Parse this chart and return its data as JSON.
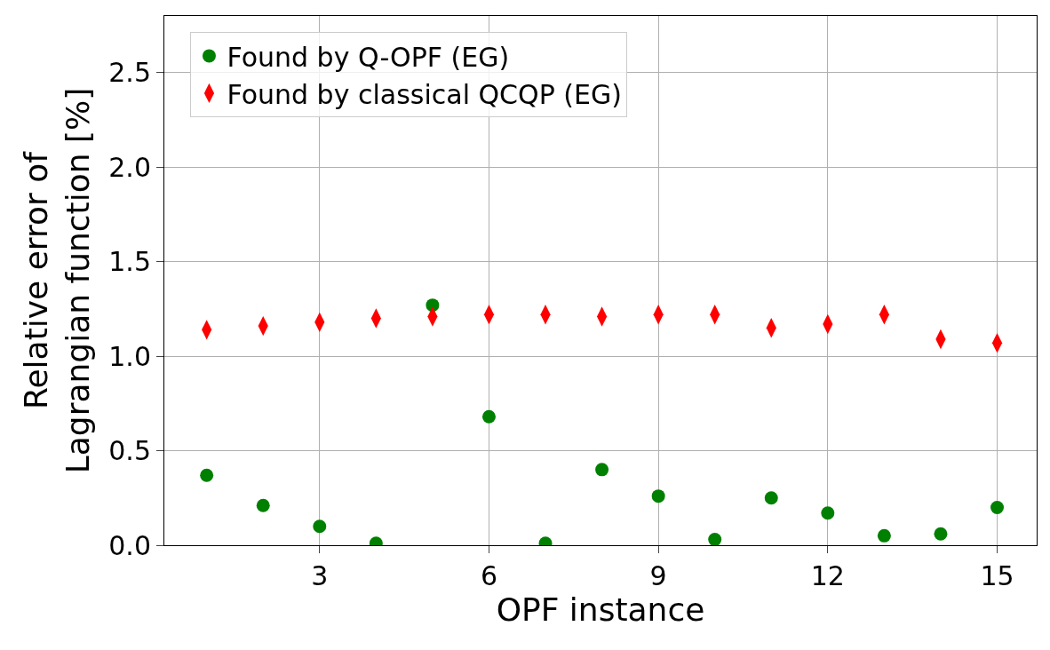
{
  "chart_data": {
    "type": "scatter",
    "xlabel": "OPF instance",
    "ylabel": "Relative error of\nLagrangian function [%]",
    "x": [
      1,
      2,
      3,
      4,
      5,
      6,
      7,
      8,
      9,
      10,
      11,
      12,
      13,
      14,
      15
    ],
    "series": [
      {
        "name": "Found by Q-OPF (EG)",
        "color": "#008000",
        "marker": "circle",
        "values": [
          0.37,
          0.21,
          0.1,
          0.01,
          1.27,
          0.68,
          0.01,
          0.4,
          0.26,
          0.03,
          0.25,
          0.17,
          0.05,
          0.06,
          0.2
        ]
      },
      {
        "name": "Found by classical QCQP (EG)",
        "color": "#ff0000",
        "marker": "diamond",
        "values": [
          1.14,
          1.16,
          1.18,
          1.2,
          1.21,
          1.22,
          1.22,
          1.21,
          1.22,
          1.22,
          1.15,
          1.17,
          1.22,
          1.09,
          1.07
        ]
      }
    ],
    "xlim": [
      0.25,
      15.7
    ],
    "xticks": [
      3,
      6,
      9,
      12,
      15
    ],
    "ylim": [
      0,
      2.8
    ],
    "yticks": [
      {
        "value": 0,
        "label": "0.0"
      },
      {
        "value": 0.5,
        "label": "0.5"
      },
      {
        "value": 1,
        "label": "1.0"
      },
      {
        "value": 1.5,
        "label": "1.5"
      },
      {
        "value": 2,
        "label": "2.0"
      },
      {
        "value": 2.5,
        "label": "2.5"
      }
    ],
    "grid": true,
    "legend": "top left"
  }
}
